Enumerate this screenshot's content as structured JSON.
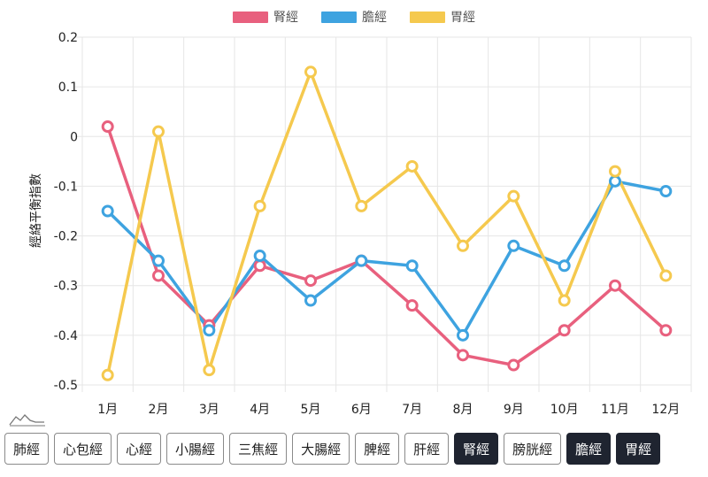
{
  "chart_data": {
    "type": "line",
    "categories": [
      "1月",
      "2月",
      "3月",
      "4月",
      "5月",
      "6月",
      "7月",
      "8月",
      "9月",
      "10月",
      "11月",
      "12月"
    ],
    "ylabel": "經絡平衡指數",
    "ylim": [
      -0.5,
      0.2
    ],
    "yticks": [
      "0.2",
      "0.1",
      "0",
      "-0.1",
      "-0.2",
      "-0.3",
      "-0.4",
      "-0.5"
    ],
    "grid": true,
    "legend_position": "top-center",
    "series": [
      {
        "name": "腎經",
        "color": "#e8607e",
        "values": [
          0.02,
          -0.28,
          -0.38,
          -0.26,
          -0.29,
          -0.25,
          -0.34,
          -0.44,
          -0.46,
          -0.39,
          -0.3,
          -0.39
        ]
      },
      {
        "name": "膽經",
        "color": "#3ea3e0",
        "values": [
          -0.15,
          -0.25,
          -0.39,
          -0.24,
          -0.33,
          -0.25,
          -0.26,
          -0.4,
          -0.22,
          -0.26,
          -0.09,
          -0.11
        ]
      },
      {
        "name": "胃經",
        "color": "#f5c94e",
        "values": [
          -0.48,
          0.01,
          -0.47,
          -0.14,
          0.13,
          -0.14,
          -0.06,
          -0.22,
          -0.12,
          -0.33,
          -0.07,
          -0.28
        ]
      }
    ]
  },
  "legend": [
    {
      "label": "腎經",
      "color": "#e8607e"
    },
    {
      "label": "膽經",
      "color": "#3ea3e0"
    },
    {
      "label": "胃經",
      "color": "#f5c94e"
    }
  ],
  "buttons": [
    {
      "label": "肺經",
      "active": false
    },
    {
      "label": "心包經",
      "active": false
    },
    {
      "label": "心經",
      "active": false
    },
    {
      "label": "小腸經",
      "active": false
    },
    {
      "label": "三焦經",
      "active": false
    },
    {
      "label": "大腸經",
      "active": false
    },
    {
      "label": "脾經",
      "active": false
    },
    {
      "label": "肝經",
      "active": false
    },
    {
      "label": "腎經",
      "active": true
    },
    {
      "label": "膀胱經",
      "active": false
    },
    {
      "label": "膽經",
      "active": true
    },
    {
      "label": "胃經",
      "active": true
    }
  ]
}
